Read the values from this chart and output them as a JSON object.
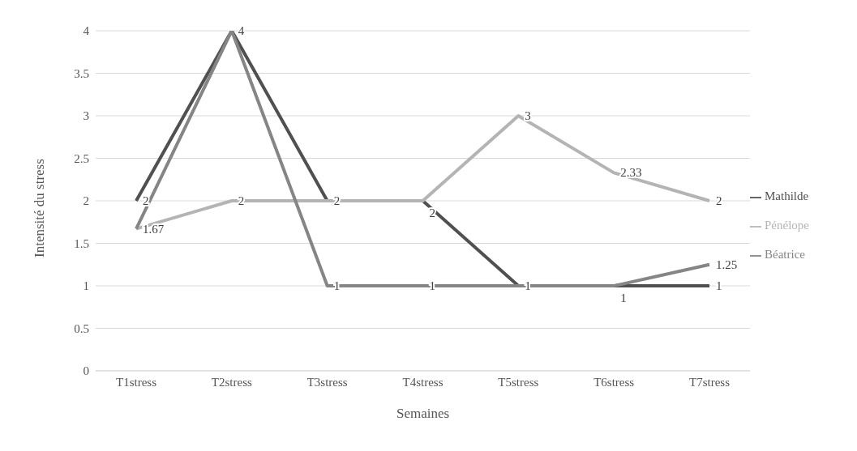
{
  "chart_data": {
    "type": "line",
    "xlabel": "Semaines",
    "ylabel": "Intensité du stress",
    "categories": [
      "T1stress",
      "T2stress",
      "T3stress",
      "T4stress",
      "T5stress",
      "T6stress",
      "T7stress"
    ],
    "series": [
      {
        "name": "Mathilde",
        "color": "#505050",
        "values": [
          2,
          4,
          2,
          2,
          1,
          1,
          1
        ],
        "value_labels": [
          "2",
          "4",
          null,
          null,
          null,
          null,
          "1"
        ]
      },
      {
        "name": "Pénélope",
        "color": "#b4b4b4",
        "values": [
          1.67,
          2,
          2,
          2,
          3,
          2.33,
          2
        ],
        "value_labels": [
          "1.67",
          "2",
          "2",
          "2",
          "3",
          "2.33",
          "2"
        ]
      },
      {
        "name": "Béatrice",
        "color": "#858585",
        "values": [
          1.67,
          4,
          1,
          1,
          1,
          1,
          1.25
        ],
        "value_labels": [
          null,
          null,
          "1",
          "1",
          "1",
          "1",
          "1.25"
        ]
      }
    ],
    "ylim": [
      0,
      4
    ],
    "yticks": [
      0,
      0.5,
      1,
      1.5,
      2,
      2.5,
      3,
      3.5,
      4
    ],
    "grid": "y",
    "legend": "right",
    "marker": "none",
    "line_style": "solid"
  }
}
